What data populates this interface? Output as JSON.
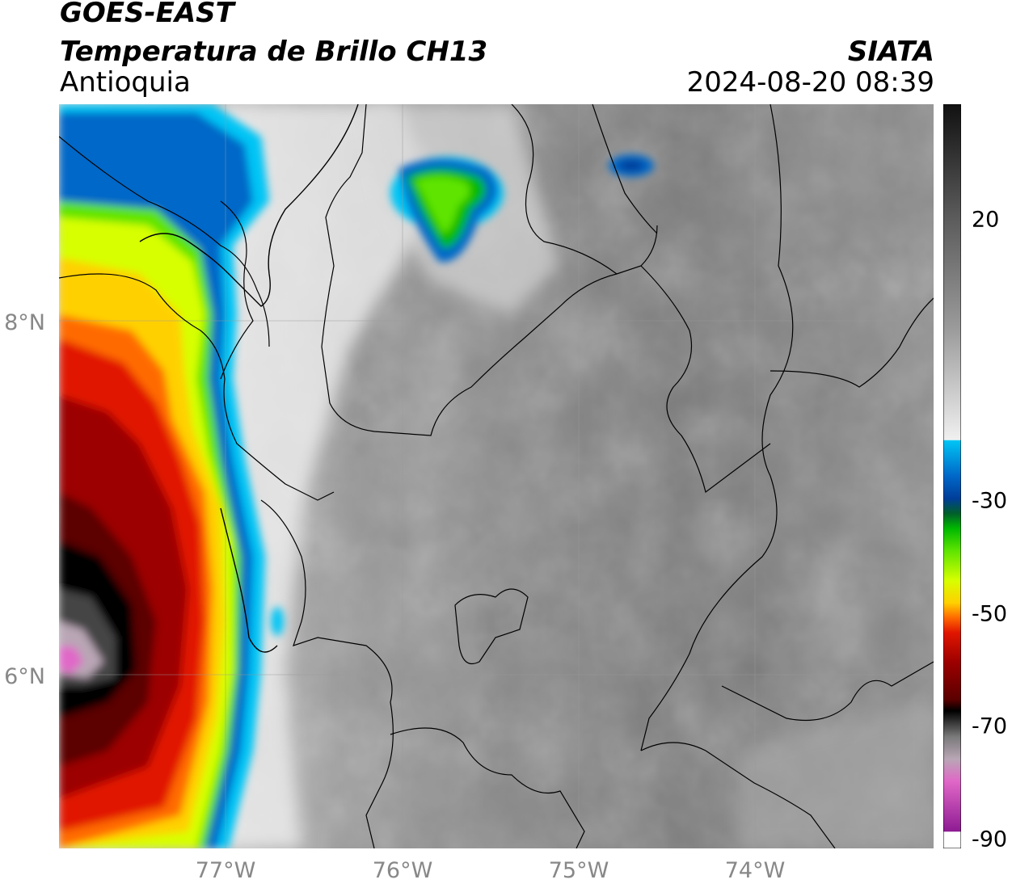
{
  "header": {
    "satellite": "GOES-EAST",
    "product": "Temperatura de Brillo CH13",
    "region": "Antioquia",
    "organization": "SIATA",
    "datetime": "2024-08-20 08:39"
  },
  "axes": {
    "lat_labels": [
      "8°N",
      "6°N"
    ],
    "lon_labels": [
      "77°W",
      "76°W",
      "75°W",
      "74°W"
    ]
  },
  "colorbar": {
    "ticks": [
      "20",
      "-30",
      "-50",
      "-70",
      "-90"
    ],
    "colors": [
      "#ffffff",
      "#8e1b93",
      "#e067c7",
      "#b9a6b5",
      "#7a7a7a",
      "#222222",
      "#000000",
      "#5b0000",
      "#9c0000",
      "#e11600",
      "#ff6a00",
      "#ffd000",
      "#d7ff00",
      "#5ee400",
      "#00b800",
      "#005f2a",
      "#003e99",
      "#0067c8",
      "#00c5f5",
      "#f0f0f0",
      "#9a9a9a",
      "#5a5a5a",
      "#111111"
    ]
  }
}
